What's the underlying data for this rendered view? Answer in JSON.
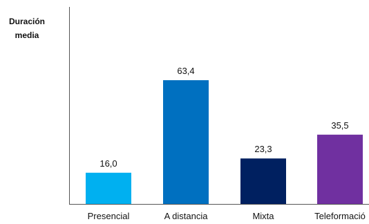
{
  "chart_data": {
    "type": "bar",
    "title": "",
    "xlabel": "",
    "ylabel_lines": [
      "Duración",
      "media"
    ],
    "categories": [
      "Presencial",
      "A distancia",
      "Mixta",
      "Teleformació"
    ],
    "values": [
      16.0,
      63.4,
      23.3,
      35.5
    ],
    "value_labels": [
      "16,0",
      "63,4",
      "23,3",
      "35,5"
    ],
    "colors": [
      "#00B0F0",
      "#0070C0",
      "#002060",
      "#7030A0"
    ],
    "ylim": [
      0,
      70
    ],
    "grid": false,
    "legend": "none"
  }
}
